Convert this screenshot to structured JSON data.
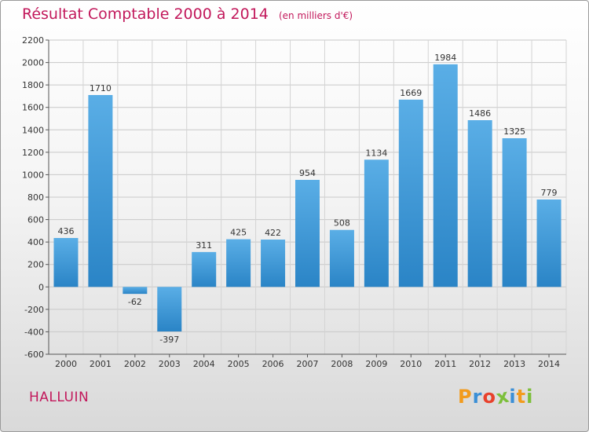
{
  "header": {
    "title": "Résultat Comptable 2000 à 2014",
    "subtitle": "(en milliers d'€)"
  },
  "footer": {
    "commune": "HALLUIN",
    "logo_letters": [
      "P",
      "r",
      "o",
      "x",
      "i",
      "t",
      "i"
    ],
    "logo_colors": [
      "#f29b1d",
      "#3b8fd6",
      "#e8412c",
      "#7cbf3a",
      "#3b8fd6",
      "#f29b1d",
      "#7cbf3a"
    ]
  },
  "colors": {
    "accent": "#c2185b",
    "bar_light": "#5aaee6",
    "bar_dark": "#2a84c6"
  },
  "chart_data": {
    "type": "bar",
    "categories": [
      "2000",
      "2001",
      "2002",
      "2003",
      "2004",
      "2005",
      "2006",
      "2007",
      "2008",
      "2009",
      "2010",
      "2011",
      "2012",
      "2013",
      "2014"
    ],
    "values": [
      436,
      1710,
      -62,
      -397,
      311,
      425,
      422,
      954,
      508,
      1134,
      1669,
      1984,
      1486,
      1325,
      779
    ],
    "ylim": [
      -600,
      2200
    ],
    "yticks": [
      -600,
      -400,
      -200,
      0,
      200,
      400,
      600,
      800,
      1000,
      1200,
      1400,
      1600,
      1800,
      2000,
      2200
    ],
    "grid": true
  }
}
